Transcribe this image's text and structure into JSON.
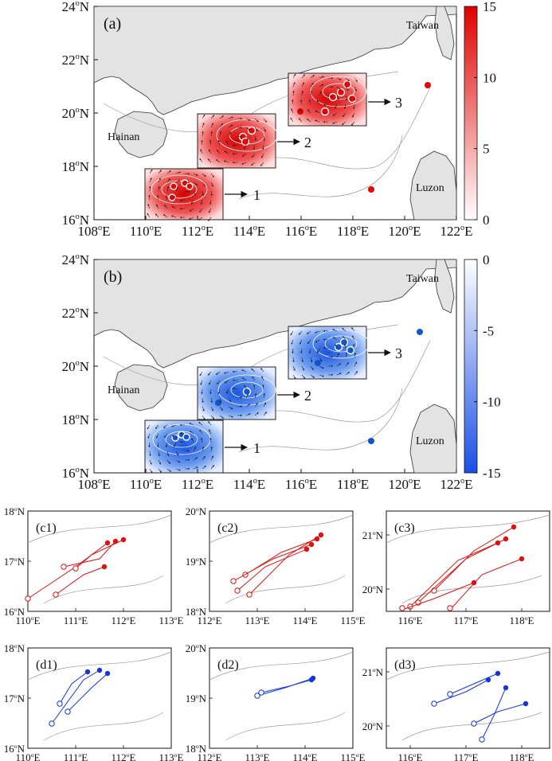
{
  "figure": {
    "panel_a": {
      "label": "(a)",
      "lat_ticks": [
        "16",
        "18",
        "20",
        "22",
        "24"
      ],
      "lon_ticks": [
        "108",
        "110",
        "112",
        "114",
        "116",
        "118",
        "120",
        "122"
      ],
      "places": {
        "taiwan": "Taiwan",
        "hainan": "Hainan",
        "luzon": "Luzon"
      },
      "box_labels": [
        "1",
        "2",
        "3"
      ],
      "colorbar": {
        "ticks": [
          "15",
          "10",
          "5",
          "0"
        ],
        "colors": [
          "#e00000",
          "#ffffff"
        ]
      }
    },
    "panel_b": {
      "label": "(b)",
      "lat_ticks": [
        "16",
        "18",
        "20",
        "22",
        "24"
      ],
      "lon_ticks": [
        "108",
        "110",
        "112",
        "114",
        "116",
        "118",
        "120",
        "122"
      ],
      "places": {
        "taiwan": "Taiwan",
        "hainan": "Hainan",
        "luzon": "Luzon"
      },
      "box_labels": [
        "1",
        "2",
        "3"
      ],
      "colorbar": {
        "ticks": [
          "0",
          "-5",
          "-10",
          "-15"
        ],
        "colors": [
          "#ffffff",
          "#1a4fe6"
        ]
      }
    },
    "small_panels": [
      {
        "label": "(c1)",
        "color": "#e01010",
        "lat": [
          "16",
          "17",
          "18"
        ],
        "lon": [
          "110",
          "111",
          "112",
          "113"
        ]
      },
      {
        "label": "(c2)",
        "color": "#e01010",
        "lat": [
          "18",
          "19",
          "20"
        ],
        "lon": [
          "112",
          "113",
          "114",
          "115"
        ]
      },
      {
        "label": "(c3)",
        "color": "#e01010",
        "lat": [
          "20",
          "21"
        ],
        "lon": [
          "116",
          "117",
          "118"
        ]
      },
      {
        "label": "(d1)",
        "color": "#1535d8",
        "lat": [
          "16",
          "17",
          "18"
        ],
        "lon": [
          "110",
          "111",
          "112",
          "113"
        ]
      },
      {
        "label": "(d2)",
        "color": "#1535d8",
        "lat": [
          "18",
          "19",
          "20"
        ],
        "lon": [
          "112",
          "113",
          "114",
          "115"
        ]
      },
      {
        "label": "(d3)",
        "color": "#1535d8",
        "lat": [
          "20",
          "21"
        ],
        "lon": [
          "116",
          "117",
          "118"
        ]
      }
    ],
    "units": {
      "deg": "o",
      "north": "N",
      "east": "E"
    }
  }
}
